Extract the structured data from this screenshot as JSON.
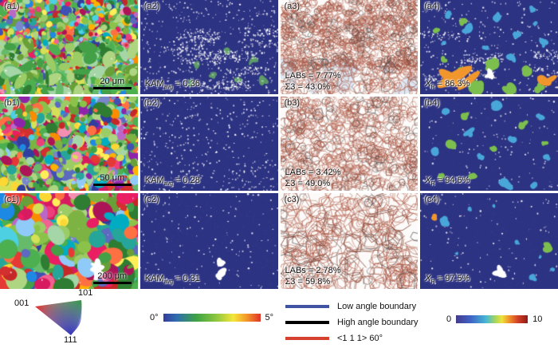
{
  "panels": [
    {
      "id": "a1",
      "label": "(a1)",
      "type": "ipf-orientation-map",
      "scale_bar": "20 μm"
    },
    {
      "id": "a2",
      "label": "(a2)",
      "type": "kam-map",
      "stat": {
        "prefix": "KAM",
        "sub": "avg",
        "rest": " = 0.36"
      }
    },
    {
      "id": "a3",
      "label": "(a3)",
      "type": "boundary-map",
      "line1": "LABs = 7.77%",
      "line2": "Σ3 = 43.0%"
    },
    {
      "id": "a4",
      "label": "(a4)",
      "type": "recrystallization-map",
      "stat": {
        "prefix": "X",
        "sub": "R",
        "rest": " = 86.3%"
      }
    },
    {
      "id": "b1",
      "label": "(b1)",
      "type": "ipf-orientation-map",
      "scale_bar": "50 μm"
    },
    {
      "id": "b2",
      "label": "(b2)",
      "type": "kam-map",
      "stat": {
        "prefix": "KAM",
        "sub": "avg",
        "rest": " = 0.28"
      }
    },
    {
      "id": "b3",
      "label": "(b3)",
      "type": "boundary-map",
      "line1": "LABs = 3.42%",
      "line2": "Σ3 = 49.0%"
    },
    {
      "id": "b4",
      "label": "(b4)",
      "type": "recrystallization-map",
      "stat": {
        "prefix": "X",
        "sub": "R",
        "rest": " = 94.6%"
      }
    },
    {
      "id": "c1",
      "label": "(c1)",
      "type": "ipf-orientation-map",
      "scale_bar": "200 μm"
    },
    {
      "id": "c2",
      "label": "(c2)",
      "type": "kam-map",
      "stat": {
        "prefix": "KAM",
        "sub": "avg",
        "rest": " = 0.31"
      }
    },
    {
      "id": "c3",
      "label": "(c3)",
      "type": "boundary-map",
      "line1": "LABs = 2.78%",
      "line2": "Σ3 = 59.8%"
    },
    {
      "id": "c4",
      "label": "(c4)",
      "type": "recrystallization-map",
      "stat": {
        "prefix": "X",
        "sub": "R",
        "rest": " = 97.5%"
      }
    }
  ],
  "legends": {
    "ipf_key": {
      "corner_001": "001",
      "corner_101": "101",
      "corner_111": "111"
    },
    "kam_colorbar": {
      "min": "0°",
      "max": "5°"
    },
    "boundary_key": {
      "items": [
        {
          "label": "Low angle boundary",
          "color": "#4053a3"
        },
        {
          "label": "High angle boundary",
          "color": "#000000"
        },
        {
          "label": "<1 1 1> 60°",
          "color": "#d6402e"
        }
      ]
    },
    "value_colorbar": {
      "min": "0",
      "max": "10"
    }
  },
  "colors": {
    "map_background": "#2d3383",
    "grain_blue": "#49a6d9",
    "grain_green": "#7cbf4e",
    "grain_orange": "#f0962d",
    "boundary_line": "#b25c48"
  }
}
